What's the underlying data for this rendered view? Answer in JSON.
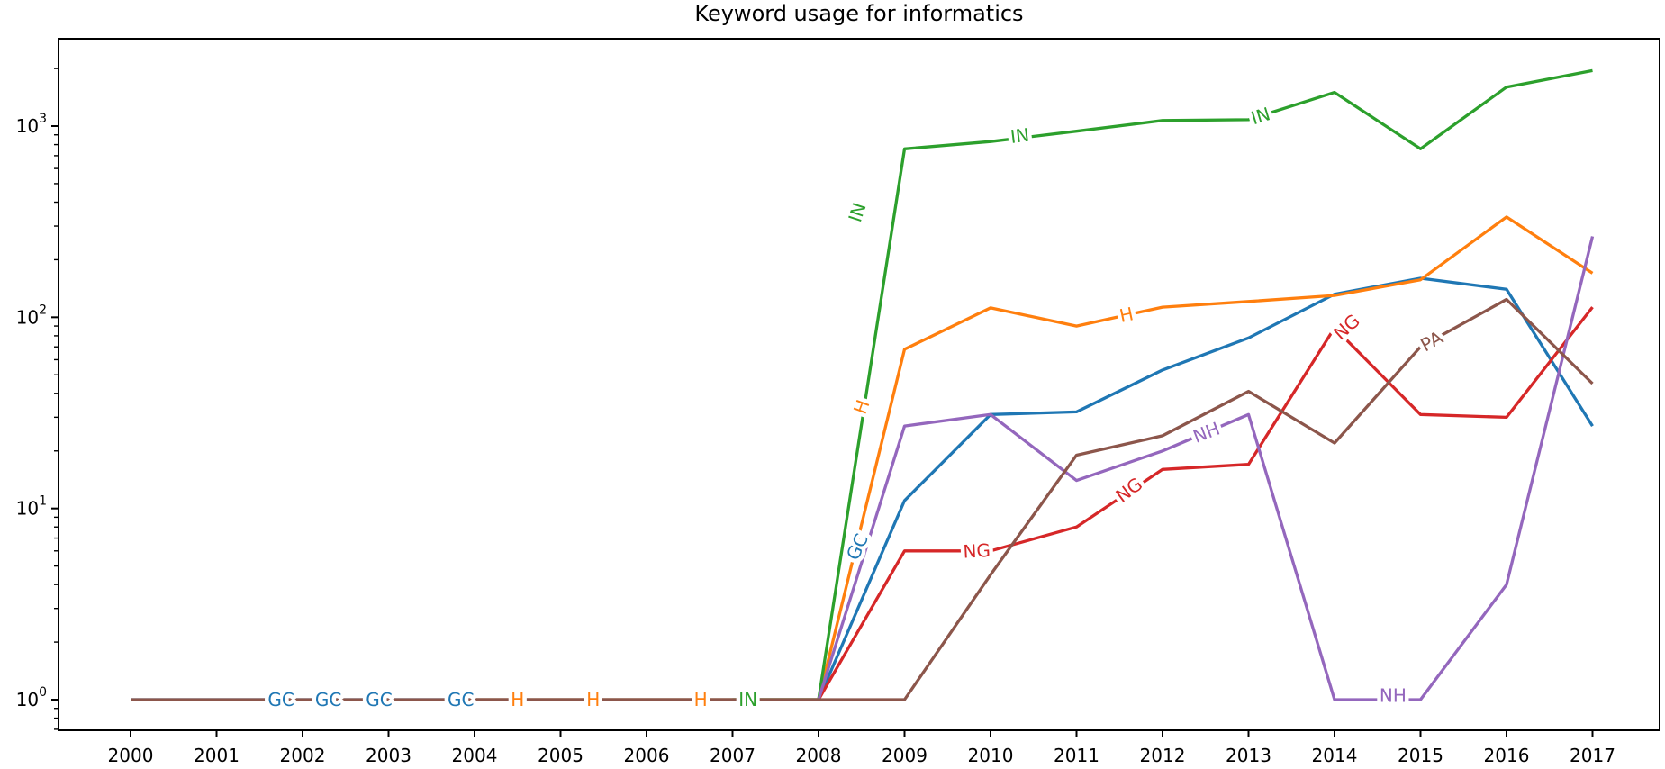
{
  "chart_data": {
    "type": "line",
    "title": "Keyword usage for informatics",
    "x_scale": "linear",
    "y_scale": "log",
    "grid": false,
    "legend": "inline-labels-on-lines",
    "xlim": [
      1999.1,
      2017.9
    ],
    "ylim": [
      0.69,
      2900
    ],
    "x_ticks": [
      2000,
      2001,
      2002,
      2003,
      2004,
      2005,
      2006,
      2007,
      2008,
      2009,
      2010,
      2011,
      2012,
      2013,
      2014,
      2015,
      2016,
      2017
    ],
    "y_tick_exponents": [
      0,
      1,
      2,
      3
    ],
    "series": [
      {
        "name": "GC",
        "color": "#1f77b4",
        "start_year": 2000,
        "values": [
          1,
          1,
          1,
          1,
          1,
          1,
          1,
          1,
          1,
          11,
          31,
          32,
          53,
          78,
          132,
          160,
          140,
          27
        ]
      },
      {
        "name": "H",
        "color": "#ff7f0e",
        "start_year": 2004,
        "values": [
          1,
          1,
          1,
          1,
          1,
          68,
          112,
          90,
          113,
          121,
          130,
          157,
          335,
          170
        ]
      },
      {
        "name": "IN",
        "color": "#2ca02c",
        "start_year": 2007,
        "values": [
          1,
          1,
          760,
          830,
          940,
          1070,
          1080,
          1500,
          760,
          1600,
          1950
        ]
      },
      {
        "name": "NG",
        "color": "#d62728",
        "start_year": 2008,
        "values": [
          1,
          6,
          6,
          8,
          16,
          17,
          88,
          31,
          30,
          113
        ]
      },
      {
        "name": "NH",
        "color": "#9467bd",
        "start_year": 2008,
        "values": [
          1,
          27,
          31,
          14,
          20,
          31,
          1,
          1,
          4,
          265
        ]
      },
      {
        "name": "PA",
        "color": "#8c564b",
        "start_year": 2000,
        "values": [
          1,
          1,
          1,
          1,
          1,
          1,
          1,
          1,
          1,
          1,
          4.5,
          19,
          24,
          41,
          22,
          70,
          124,
          45
        ]
      }
    ],
    "inline_labels": [
      {
        "series": "GC",
        "text": "GC",
        "year": 2001.75,
        "value": 1,
        "rotation": 0
      },
      {
        "series": "GC",
        "text": "GC",
        "year": 2002.3,
        "value": 1,
        "rotation": 0
      },
      {
        "series": "GC",
        "text": "GC",
        "year": 2002.89,
        "value": 1,
        "rotation": 0
      },
      {
        "series": "GC",
        "text": "GC",
        "year": 2003.84,
        "value": 1,
        "rotation": 0
      },
      {
        "series": "GC",
        "text": "GC",
        "year": 2008.45,
        "value": 6.3,
        "rotation": -65
      },
      {
        "series": "H",
        "text": "H",
        "year": 2004.5,
        "value": 1,
        "rotation": 0
      },
      {
        "series": "H",
        "text": "H",
        "year": 2005.38,
        "value": 1,
        "rotation": 0
      },
      {
        "series": "H",
        "text": "H",
        "year": 2006.63,
        "value": 1,
        "rotation": 0
      },
      {
        "series": "H",
        "text": "H",
        "year": 2008.5,
        "value": 34,
        "rotation": -70
      },
      {
        "series": "H",
        "text": "H",
        "year": 2011.58,
        "value": 103,
        "rotation": -12
      },
      {
        "series": "IN",
        "text": "IN",
        "year": 2007.18,
        "value": 1,
        "rotation": 0
      },
      {
        "series": "IN",
        "text": "IN",
        "year": 2008.45,
        "value": 354,
        "rotation": -72
      },
      {
        "series": "IN",
        "text": "IN",
        "year": 2010.34,
        "value": 890,
        "rotation": -7
      },
      {
        "series": "IN",
        "text": "IN",
        "year": 2013.14,
        "value": 1130,
        "rotation": -17
      },
      {
        "series": "NG",
        "text": "NG",
        "year": 2009.84,
        "value": 6,
        "rotation": -3
      },
      {
        "series": "NG",
        "text": "NG",
        "year": 2011.61,
        "value": 12.5,
        "rotation": -37
      },
      {
        "series": "NG",
        "text": "NG",
        "year": 2014.14,
        "value": 89,
        "rotation": -42
      },
      {
        "series": "NH",
        "text": "NH",
        "year": 2012.51,
        "value": 25,
        "rotation": -21
      },
      {
        "series": "NH",
        "text": "NH",
        "year": 2014.68,
        "value": 1.05,
        "rotation": 0
      },
      {
        "series": "PA",
        "text": "PA",
        "year": 2015.13,
        "value": 75,
        "rotation": -29
      }
    ]
  }
}
